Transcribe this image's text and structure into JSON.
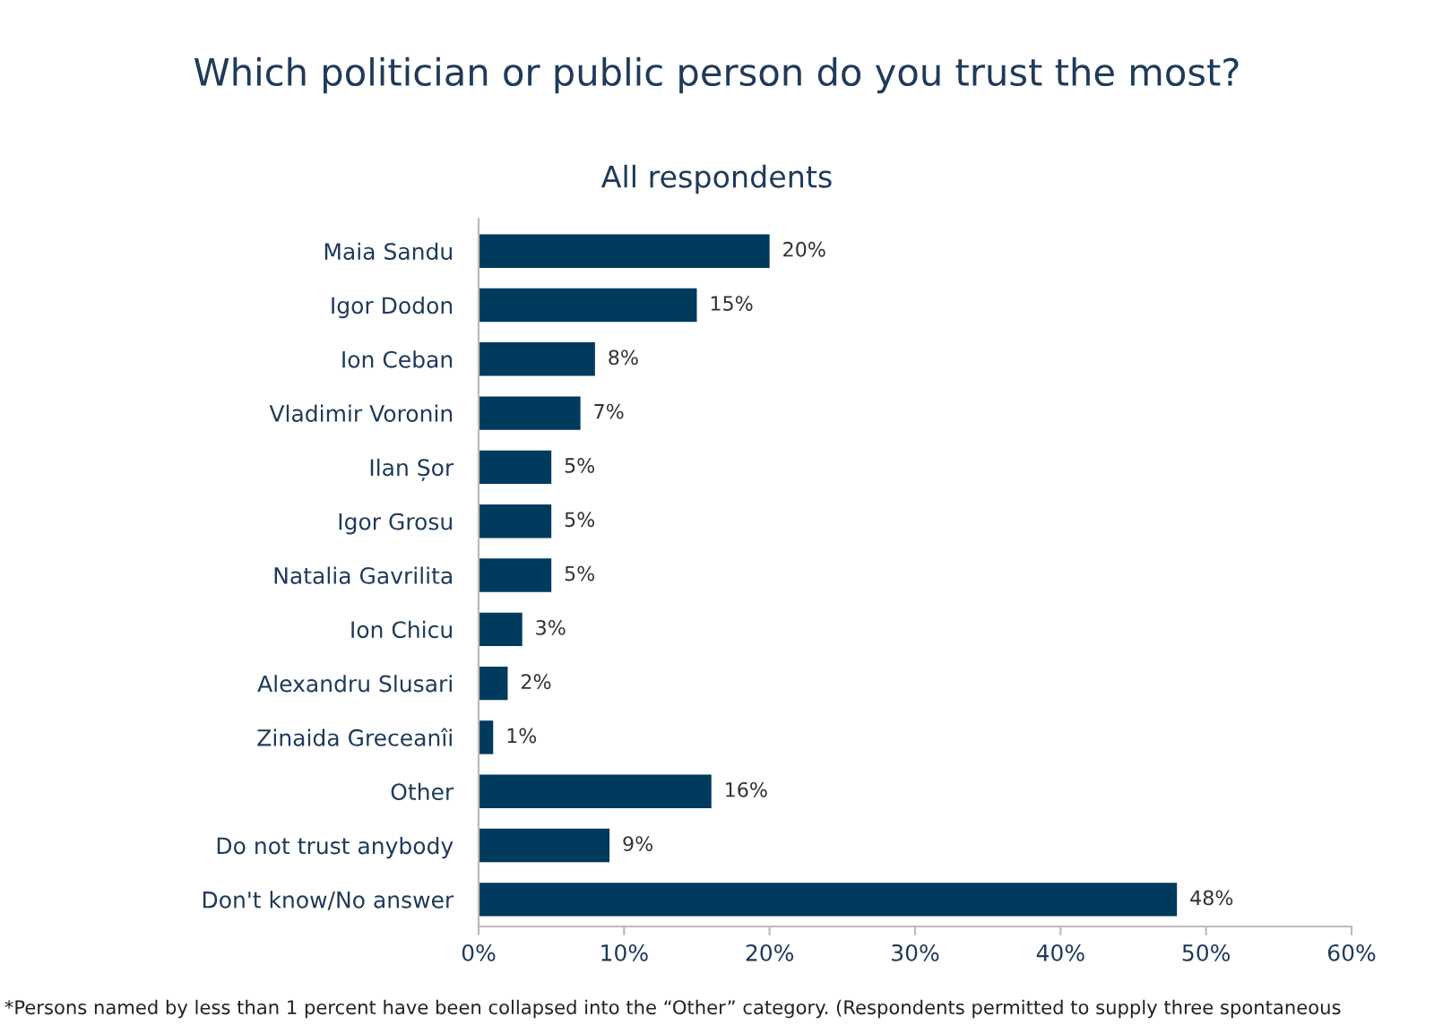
{
  "chart_data": {
    "type": "bar",
    "orientation": "horizontal",
    "title": "Which politician or public person do you trust the most?",
    "subtitle": "All respondents",
    "categories": [
      "Maia Sandu",
      "Igor Dodon",
      "Ion Ceban",
      "Vladimir Voronin",
      "Ilan Șor",
      "Igor Grosu",
      "Natalia Gavrilita",
      "Ion Chicu",
      "Alexandru Slusari",
      "Zinaida Greceanîi",
      "Other",
      "Do not trust anybody",
      "Don't know/No answer"
    ],
    "values": [
      20,
      15,
      8,
      7,
      5,
      5,
      5,
      3,
      2,
      1,
      16,
      9,
      48
    ],
    "value_labels": [
      "20%",
      "15%",
      "8%",
      "7%",
      "5%",
      "5%",
      "5%",
      "3%",
      "2%",
      "1%",
      "16%",
      "9%",
      "48%"
    ],
    "color": "#003a5d",
    "grid": false,
    "legend": false,
    "xlim": [
      0,
      60
    ],
    "xticks": [
      {
        "value": 0,
        "label": "0%"
      },
      {
        "value": 10,
        "label": "10%"
      },
      {
        "value": 20,
        "label": "20%"
      },
      {
        "value": 30,
        "label": "30%"
      },
      {
        "value": 40,
        "label": "40%"
      },
      {
        "value": 50,
        "label": "50%"
      },
      {
        "value": 60,
        "label": "60%"
      }
    ],
    "annotations": [
      "*Persons named by less than 1 percent have been collapsed into the “Other” category. (Respondents permitted to supply three spontaneous"
    ]
  }
}
